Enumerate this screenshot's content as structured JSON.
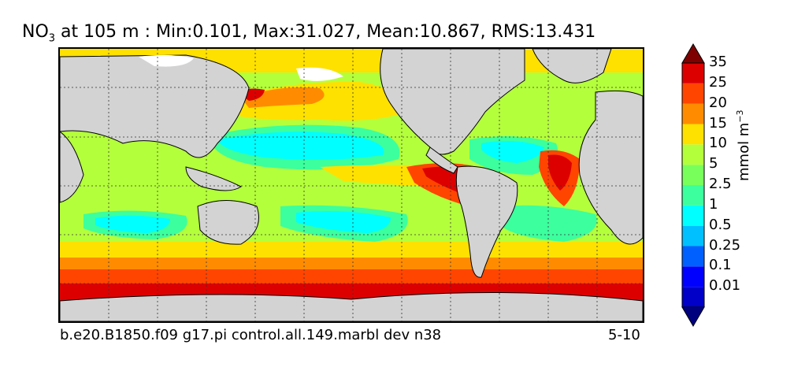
{
  "title": {
    "variable": "NO",
    "subscript": "3",
    "text": " at 105 m : Min:0.101, Max:31.027, Mean:10.867, RMS:13.431"
  },
  "caption": {
    "case_name": "b.e20.B1850.f09 g17.pi control.all.149.marbl dev n38",
    "years": "5-10"
  },
  "colorbar": {
    "units_base": "mmol m",
    "units_exponent": "−3",
    "levels": [
      "0.01",
      "0.1",
      "0.25",
      "0.5",
      "1",
      "2.5",
      "5",
      "10",
      "15",
      "20",
      "25",
      "35"
    ],
    "colors": [
      "#00007f",
      "#0000c8",
      "#0000ff",
      "#0060ff",
      "#00c0ff",
      "#00ffff",
      "#3cff9e",
      "#78ff5c",
      "#b4ff3c",
      "#ffe100",
      "#ff8c00",
      "#ff4500",
      "#dd0000",
      "#7f0000"
    ]
  },
  "map": {
    "land_color": "#d3d3d3",
    "ice_color": "#ffffff"
  }
}
